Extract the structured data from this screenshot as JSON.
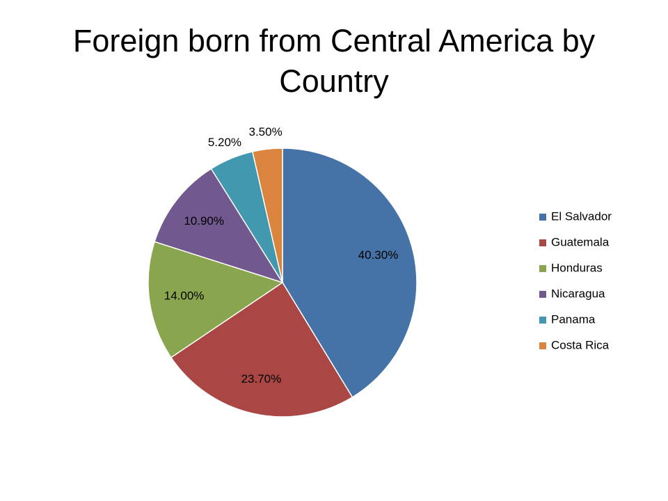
{
  "chart_data": {
    "type": "pie",
    "title": "Foreign born from Central America by Country",
    "categories": [
      "El Salvador",
      "Guatemala",
      "Honduras",
      "Nicaragua",
      "Panama",
      "Costa Rica"
    ],
    "values": [
      40.3,
      23.7,
      14.0,
      10.9,
      5.2,
      3.5
    ],
    "value_labels": [
      "40.30%",
      "23.70%",
      "14.00%",
      "10.90%",
      "5.20%",
      "3.50%"
    ],
    "colors": [
      "#4572a7",
      "#aa4643",
      "#89a54e",
      "#71588f",
      "#4198af",
      "#db843d"
    ],
    "legend": "right"
  }
}
